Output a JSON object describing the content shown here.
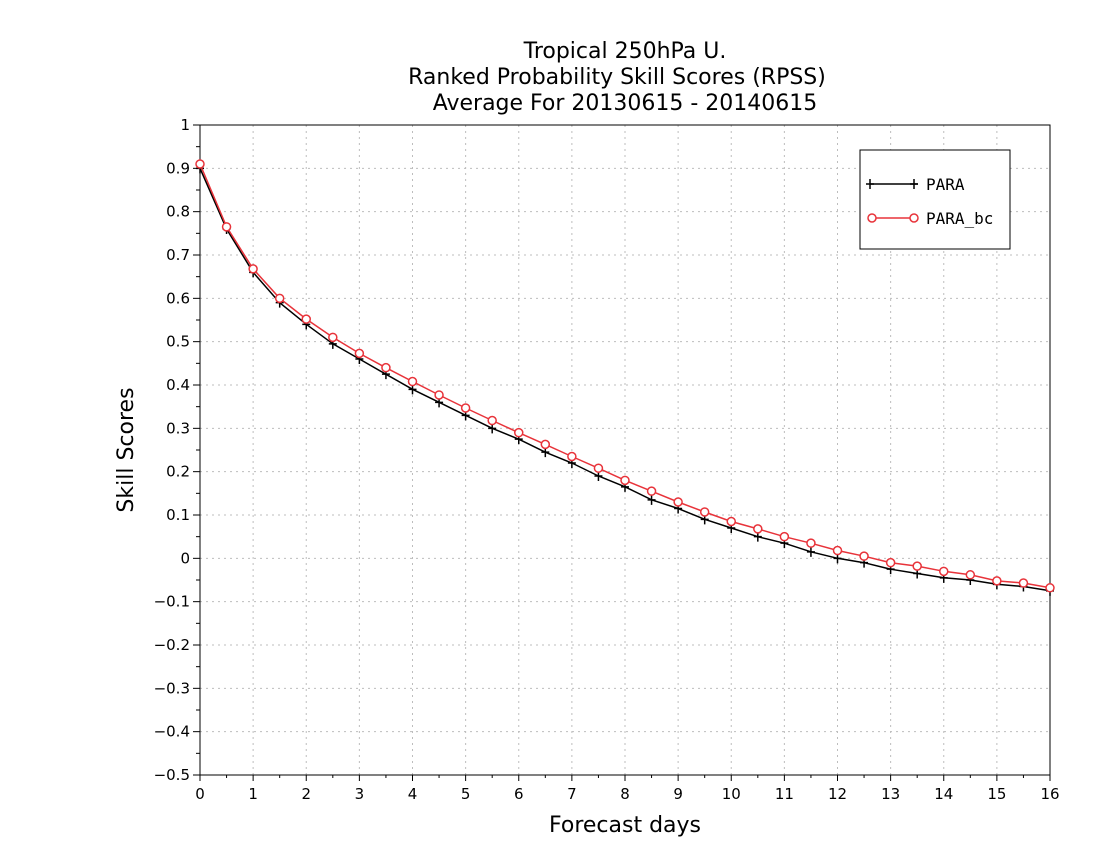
{
  "chart_data": {
    "type": "line",
    "title_lines": [
      "Tropical 250hPa U.",
      "Ranked Probability Skill Scores (RPSS)",
      "Average For 20130615 - 20140615"
    ],
    "xlabel": "Forecast days",
    "ylabel": "Skill Scores",
    "xlim": [
      0,
      16
    ],
    "ylim": [
      -0.5,
      1
    ],
    "xticks": [
      "0",
      "1",
      "2",
      "3",
      "4",
      "5",
      "6",
      "7",
      "8",
      "9",
      "10",
      "11",
      "12",
      "13",
      "14",
      "15",
      "16"
    ],
    "yticks": [
      "-0.5",
      "-0.4",
      "-0.3",
      "-0.2",
      "-0.1",
      "0",
      "0.1",
      "0.2",
      "0.3",
      "0.4",
      "0.5",
      "0.6",
      "0.7",
      "0.8",
      "0.9",
      "1"
    ],
    "grid": true,
    "legend_position": "top-right",
    "x": [
      0,
      0.5,
      1,
      1.5,
      2,
      2.5,
      3,
      3.5,
      4,
      4.5,
      5,
      5.5,
      6,
      6.5,
      7,
      7.5,
      8,
      8.5,
      9,
      9.5,
      10,
      10.5,
      11,
      11.5,
      12,
      12.5,
      13,
      13.5,
      14,
      14.5,
      15,
      15.5,
      16
    ],
    "series": [
      {
        "name": "PARA",
        "color": "#000000",
        "marker": "plus",
        "values": [
          0.9,
          0.76,
          0.66,
          0.59,
          0.54,
          0.495,
          0.46,
          0.425,
          0.39,
          0.36,
          0.33,
          0.3,
          0.275,
          0.245,
          0.22,
          0.19,
          0.165,
          0.135,
          0.115,
          0.09,
          0.07,
          0.05,
          0.035,
          0.015,
          0.0,
          -0.01,
          -0.025,
          -0.035,
          -0.045,
          -0.05,
          -0.06,
          -0.065,
          -0.075
        ]
      },
      {
        "name": "PARA_bc",
        "color": "#e8333a",
        "marker": "circle",
        "values": [
          0.91,
          0.765,
          0.668,
          0.6,
          0.552,
          0.51,
          0.473,
          0.44,
          0.408,
          0.377,
          0.347,
          0.318,
          0.29,
          0.263,
          0.235,
          0.208,
          0.18,
          0.155,
          0.13,
          0.107,
          0.085,
          0.068,
          0.05,
          0.035,
          0.018,
          0.005,
          -0.01,
          -0.018,
          -0.03,
          -0.038,
          -0.052,
          -0.057,
          -0.068
        ]
      }
    ]
  }
}
